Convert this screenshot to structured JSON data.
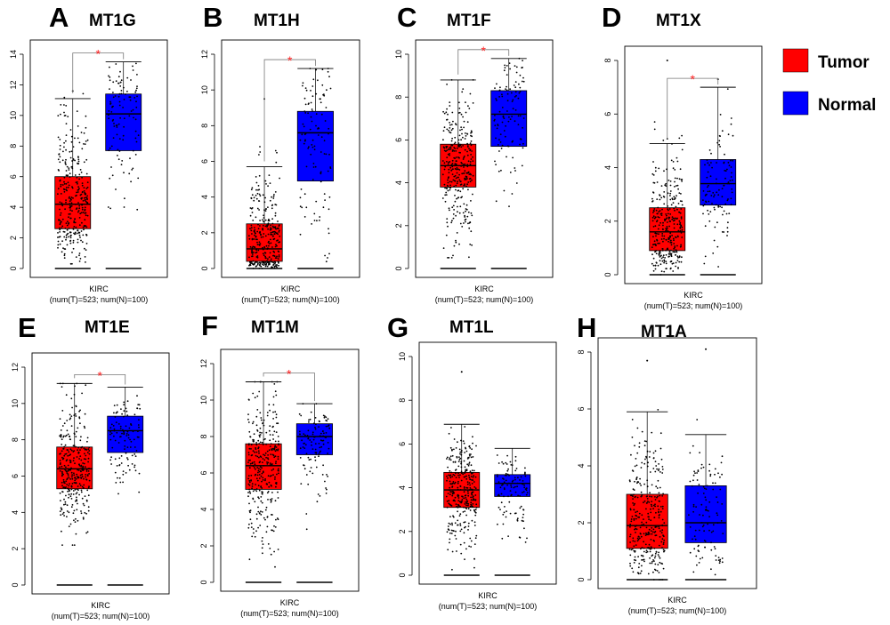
{
  "legend": [
    {
      "label": "Tumor",
      "color": "#ff0000"
    },
    {
      "label": "Normal",
      "color": "#0000ff"
    }
  ],
  "chart_data": [
    {
      "type": "box",
      "panel_letter": "A",
      "title": "MT1G",
      "xlabel": "KIRC",
      "xsub": "(num(T)=523; num(N)=100)",
      "ylim": [
        0,
        14
      ],
      "yticks": [
        0,
        2,
        4,
        6,
        8,
        10,
        12,
        14
      ],
      "significant": true,
      "series": [
        {
          "name": "Tumor",
          "color": "#ff0000",
          "min": 0.3,
          "q1": 2.6,
          "median": 4.2,
          "q3": 6.0,
          "whisker_high": 11.1,
          "max": 11.6
        },
        {
          "name": "Normal",
          "color": "#0000ff",
          "min": 1.9,
          "q1": 7.7,
          "median": 10.1,
          "q3": 11.4,
          "whisker_high": 13.5,
          "max": 13.5
        }
      ]
    },
    {
      "type": "box",
      "panel_letter": "B",
      "title": "MT1H",
      "xlabel": "KIRC",
      "xsub": "(num(T)=523; num(N)=100)",
      "ylim": [
        0,
        12
      ],
      "yticks": [
        0,
        2,
        4,
        6,
        8,
        10,
        12
      ],
      "significant": true,
      "series": [
        {
          "name": "Tumor",
          "color": "#ff0000",
          "min": 0.0,
          "q1": 0.4,
          "median": 1.1,
          "q3": 2.5,
          "whisker_high": 5.7,
          "max": 9.5
        },
        {
          "name": "Normal",
          "color": "#0000ff",
          "min": 0.1,
          "q1": 4.9,
          "median": 7.6,
          "q3": 8.8,
          "whisker_high": 11.2,
          "max": 11.2
        }
      ]
    },
    {
      "type": "box",
      "panel_letter": "C",
      "title": "MT1F",
      "xlabel": "KIRC",
      "xsub": "(num(T)=523; num(N)=100)",
      "ylim": [
        0,
        10
      ],
      "yticks": [
        0,
        2,
        4,
        6,
        8,
        10
      ],
      "significant": true,
      "series": [
        {
          "name": "Tumor",
          "color": "#ff0000",
          "min": 0.5,
          "q1": 3.8,
          "median": 4.8,
          "q3": 5.8,
          "whisker_high": 8.8,
          "max": 8.8
        },
        {
          "name": "Normal",
          "color": "#0000ff",
          "min": 2.9,
          "q1": 5.7,
          "median": 7.2,
          "q3": 8.3,
          "whisker_high": 9.8,
          "max": 9.8
        }
      ]
    },
    {
      "type": "box",
      "panel_letter": "D",
      "title": "MT1X",
      "xlabel": "KIRC",
      "xsub": "(num(T)=523; num(N)=100)",
      "ylim": [
        0,
        8
      ],
      "yticks": [
        0,
        2,
        4,
        6,
        8
      ],
      "significant": true,
      "series": [
        {
          "name": "Tumor",
          "color": "#ff0000",
          "min": 0.0,
          "q1": 0.9,
          "median": 1.6,
          "q3": 2.5,
          "whisker_high": 4.9,
          "max": 8.0
        },
        {
          "name": "Normal",
          "color": "#0000ff",
          "min": 0.3,
          "q1": 2.6,
          "median": 3.4,
          "q3": 4.3,
          "whisker_high": 7.0,
          "max": 7.3
        }
      ]
    },
    {
      "type": "box",
      "panel_letter": "E",
      "title": "MT1E",
      "xlabel": "KIRC",
      "xsub": "(num(T)=523; num(N)=100)",
      "ylim": [
        0,
        12
      ],
      "yticks": [
        0,
        2,
        4,
        6,
        8,
        10,
        12
      ],
      "significant": true,
      "series": [
        {
          "name": "Tumor",
          "color": "#ff0000",
          "min": 2.2,
          "q1": 5.3,
          "median": 6.4,
          "q3": 7.6,
          "whisker_high": 11.1,
          "max": 11.1
        },
        {
          "name": "Normal",
          "color": "#0000ff",
          "min": 4.5,
          "q1": 7.3,
          "median": 8.5,
          "q3": 9.3,
          "whisker_high": 10.9,
          "max": 10.9
        }
      ]
    },
    {
      "type": "box",
      "panel_letter": "F",
      "title": "MT1M",
      "xlabel": "KIRC",
      "xsub": "(num(T)=523; num(N)=100)",
      "ylim": [
        0,
        12
      ],
      "yticks": [
        0,
        2,
        4,
        6,
        8,
        10,
        12
      ],
      "significant": true,
      "series": [
        {
          "name": "Tumor",
          "color": "#ff0000",
          "min": 0.5,
          "q1": 5.1,
          "median": 6.4,
          "q3": 7.6,
          "whisker_high": 11.0,
          "max": 11.0
        },
        {
          "name": "Normal",
          "color": "#0000ff",
          "min": 2.8,
          "q1": 7.0,
          "median": 8.0,
          "q3": 8.7,
          "whisker_high": 9.8,
          "max": 9.8
        }
      ]
    },
    {
      "type": "box",
      "panel_letter": "G",
      "title": "MT1L",
      "xlabel": "KIRC",
      "xsub": "(num(T)=523; num(N)=100)",
      "ylim": [
        0,
        10
      ],
      "yticks": [
        0,
        2,
        4,
        6,
        8,
        10
      ],
      "significant": false,
      "series": [
        {
          "name": "Tumor",
          "color": "#ff0000",
          "min": 0.2,
          "q1": 3.1,
          "median": 3.9,
          "q3": 4.7,
          "whisker_high": 6.9,
          "max": 9.3
        },
        {
          "name": "Normal",
          "color": "#0000ff",
          "min": 0.8,
          "q1": 3.6,
          "median": 4.2,
          "q3": 4.6,
          "whisker_high": 5.8,
          "max": 5.8
        }
      ]
    },
    {
      "type": "box",
      "panel_letter": "H",
      "title": "MT1A",
      "xlabel": "KIRC",
      "xsub": "(num(T)=523; num(N)=100)",
      "ylim": [
        0,
        8
      ],
      "yticks": [
        0,
        2,
        4,
        6,
        8
      ],
      "significant": false,
      "series": [
        {
          "name": "Tumor",
          "color": "#ff0000",
          "min": 0.0,
          "q1": 1.1,
          "median": 1.9,
          "q3": 3.0,
          "whisker_high": 5.9,
          "max": 7.7
        },
        {
          "name": "Normal",
          "color": "#0000ff",
          "min": 0.1,
          "q1": 1.3,
          "median": 2.0,
          "q3": 3.3,
          "whisker_high": 5.1,
          "max": 8.1
        }
      ]
    }
  ]
}
